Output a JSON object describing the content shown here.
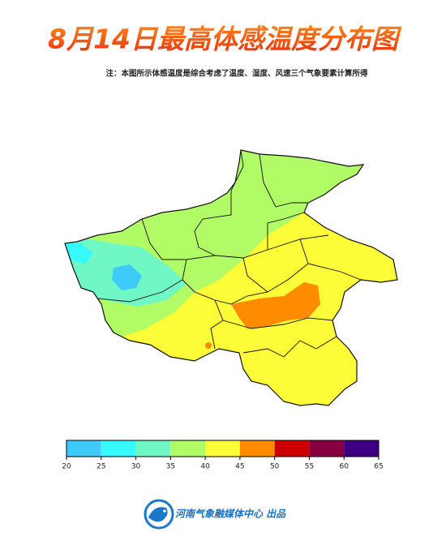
{
  "title": "8月14日最高体感温度分布图",
  "note": "注：本图所示体感温度是综合考虑了温度、湿度、风速三个气象要素计算所得",
  "legend": {
    "ticks": [
      20,
      25,
      30,
      35,
      40,
      45,
      50,
      55,
      60,
      65
    ],
    "colors": [
      "#3ecbfa",
      "#36fafa",
      "#6ff7c6",
      "#b0fb66",
      "#fcfc38",
      "#ff8c00",
      "#cc0000",
      "#880040",
      "#3d0082"
    ]
  },
  "footer": "河南气象融媒体中心 出品"
}
